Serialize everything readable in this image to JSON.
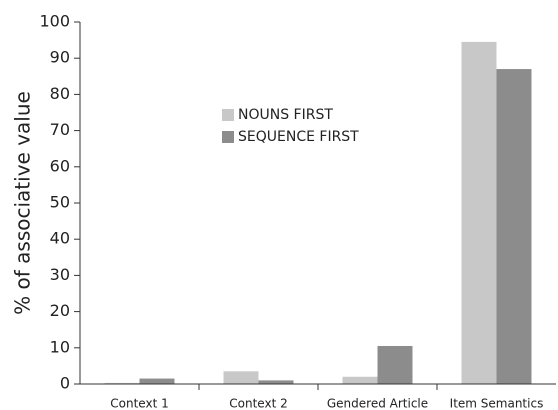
{
  "chart_data": {
    "type": "bar",
    "ylabel": "% of associative value",
    "categories": [
      "Context 1",
      "Context 2",
      "Gendered Article",
      "Item Semantics"
    ],
    "series": [
      {
        "name": "NOUNS FIRST",
        "color": "#c8c8c8",
        "values": [
          0.3,
          3.5,
          2,
          94.5
        ]
      },
      {
        "name": "SEQUENCE FIRST",
        "color": "#8c8c8c",
        "values": [
          1.5,
          1,
          10.5,
          87
        ]
      }
    ],
    "ylim": [
      0,
      100
    ],
    "yticks": [
      0,
      10,
      20,
      30,
      40,
      50,
      60,
      70,
      80,
      90,
      100
    ]
  }
}
